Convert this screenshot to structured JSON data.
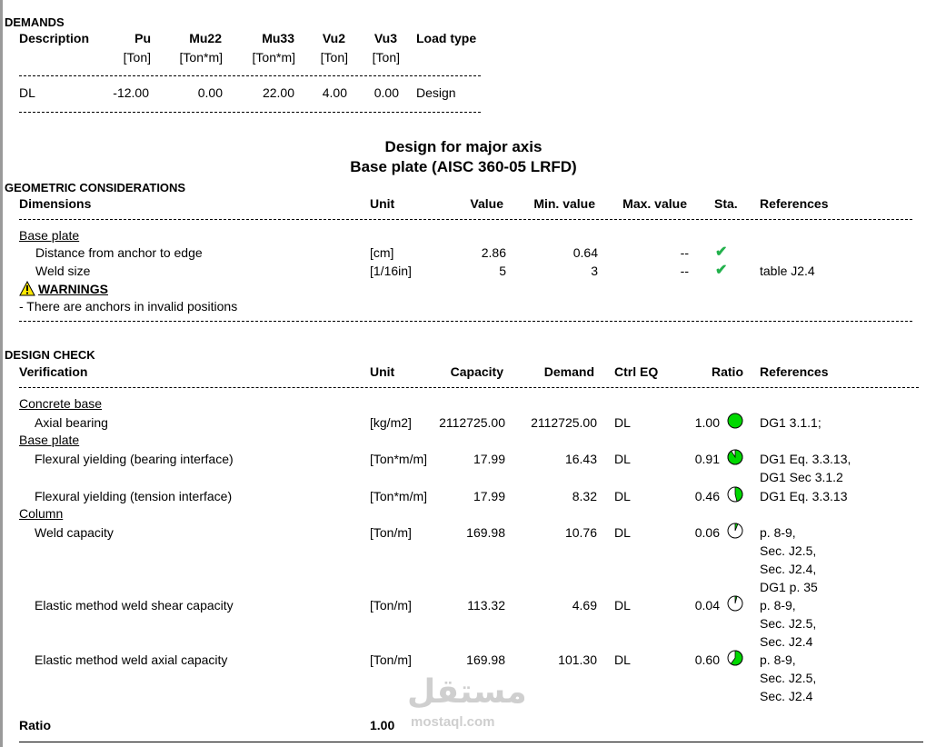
{
  "demands": {
    "section_title": "DEMANDS",
    "headers": [
      "Description",
      "Pu",
      "Mu22",
      "Mu33",
      "Vu2",
      "Vu3",
      "Load type"
    ],
    "units": [
      "[Ton]",
      "[Ton*m]",
      "[Ton*m]",
      "[Ton]",
      "[Ton]"
    ],
    "row": [
      "DL",
      "-12.00",
      "0.00",
      "22.00",
      "4.00",
      "0.00",
      "Design"
    ]
  },
  "design_title": {
    "line1": "Design for major axis",
    "line2": "Base plate (AISC 360-05 LRFD)"
  },
  "geometric": {
    "section_title": "GEOMETRIC CONSIDERATIONS",
    "headers": [
      "Dimensions",
      "Unit",
      "Value",
      "Min. value",
      "Max. value",
      "Sta.",
      "References"
    ],
    "group": "Base plate",
    "rows": [
      {
        "label": "Distance from anchor to edge",
        "unit": "[cm]",
        "value": "2.86",
        "min": "0.64",
        "max": "--",
        "ref": ""
      },
      {
        "label": "Weld size",
        "unit": "[1/16in]",
        "value": "5",
        "min": "3",
        "max": "--",
        "ref": "table J2.4"
      }
    ],
    "warnings_title": "WARNINGS",
    "warning_text": "- There are anchors in invalid positions"
  },
  "design_check": {
    "section_title": "DESIGN CHECK",
    "headers": [
      "Verification",
      "Unit",
      "Capacity",
      "Demand",
      "Ctrl EQ",
      "Ratio",
      "References"
    ],
    "groups": [
      "Concrete base",
      "Base plate",
      "Column"
    ],
    "rows": [
      {
        "label": "Axial bearing",
        "unit": "[kg/m2]",
        "capacity": "2112725.00",
        "demand": "2112725.00",
        "ctrl": "DL",
        "ratio": "1.00",
        "fill": 1.0,
        "refs": [
          "DG1 3.1.1;"
        ]
      },
      {
        "label": "Flexural yielding (bearing interface)",
        "unit": "[Ton*m/m]",
        "capacity": "17.99",
        "demand": "16.43",
        "ctrl": "DL",
        "ratio": "0.91",
        "fill": 0.91,
        "refs": [
          "DG1 Eq. 3.3.13,",
          "DG1 Sec 3.1.2"
        ]
      },
      {
        "label": "Flexural yielding (tension interface)",
        "unit": "[Ton*m/m]",
        "capacity": "17.99",
        "demand": "8.32",
        "ctrl": "DL",
        "ratio": "0.46",
        "fill": 0.46,
        "refs": [
          "DG1 Eq. 3.3.13"
        ]
      },
      {
        "label": "Weld capacity",
        "unit": "[Ton/m]",
        "capacity": "169.98",
        "demand": "10.76",
        "ctrl": "DL",
        "ratio": "0.06",
        "fill": 0.06,
        "refs": [
          "p. 8-9,",
          "Sec. J2.5,",
          "Sec. J2.4,",
          "DG1 p. 35"
        ]
      },
      {
        "label": "Elastic method weld shear capacity",
        "unit": "[Ton/m]",
        "capacity": "113.32",
        "demand": "4.69",
        "ctrl": "DL",
        "ratio": "0.04",
        "fill": 0.04,
        "refs": [
          "p. 8-9,",
          "Sec. J2.5,",
          "Sec. J2.4"
        ]
      },
      {
        "label": "Elastic method weld axial capacity",
        "unit": "[Ton/m]",
        "capacity": "169.98",
        "demand": "101.30",
        "ctrl": "DL",
        "ratio": "0.60",
        "fill": 0.6,
        "refs": [
          "p. 8-9,",
          "Sec. J2.5,",
          "Sec. J2.4"
        ]
      }
    ],
    "ratio_label": "Ratio",
    "ratio_value": "1.00"
  },
  "watermark": {
    "arabic": "مستقل",
    "latin": "mostaql.com"
  },
  "colors": {
    "ok_green": "#22b14c",
    "gauge_green": "#00d800",
    "warning_yellow": "#ffe800"
  }
}
